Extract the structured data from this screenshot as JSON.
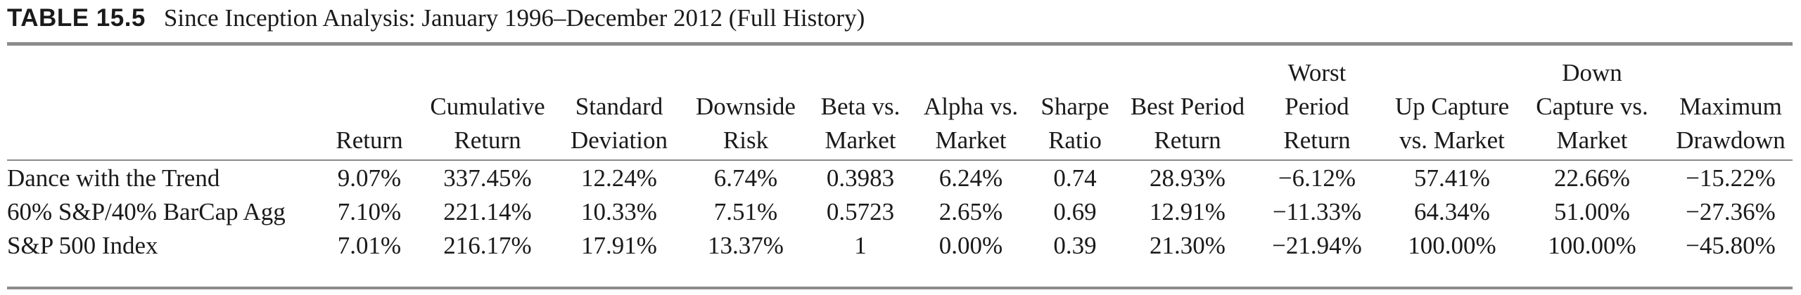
{
  "table": {
    "label": "TABLE 15.5",
    "title": "Since Inception Analysis: January 1996–December 2012 (Full History)",
    "columns": [
      {
        "lines": [
          "Return"
        ]
      },
      {
        "lines": [
          "Cumulative",
          "Return"
        ]
      },
      {
        "lines": [
          "Standard",
          "Deviation"
        ]
      },
      {
        "lines": [
          "Downside",
          "Risk"
        ]
      },
      {
        "lines": [
          "Beta vs.",
          "Market"
        ]
      },
      {
        "lines": [
          "Alpha vs.",
          "Market"
        ]
      },
      {
        "lines": [
          "Sharpe",
          "Ratio"
        ]
      },
      {
        "lines": [
          "Best Period",
          "Return"
        ]
      },
      {
        "lines": [
          "Worst",
          "Period",
          "Return"
        ]
      },
      {
        "lines": [
          "Up Capture",
          "vs. Market"
        ]
      },
      {
        "lines": [
          "Down",
          "Capture vs.",
          "Market"
        ]
      },
      {
        "lines": [
          "Maximum",
          "Drawdown"
        ]
      }
    ],
    "rows": [
      {
        "name": "Dance with the Trend",
        "values": [
          "9.07%",
          "337.45%",
          "12.24%",
          "6.74%",
          "0.3983",
          "6.24%",
          "0.74",
          "28.93%",
          "−6.12%",
          "57.41%",
          "22.66%",
          "−15.22%"
        ]
      },
      {
        "name": "60% S&P/40% BarCap Agg",
        "values": [
          "7.10%",
          "221.14%",
          "10.33%",
          "7.51%",
          "0.5723",
          "2.65%",
          "0.69",
          "12.91%",
          "−11.33%",
          "64.34%",
          "51.00%",
          "−27.36%"
        ]
      },
      {
        "name": "S&P 500 Index",
        "values": [
          "7.01%",
          "216.17%",
          "17.91%",
          "13.37%",
          "1",
          "0.00%",
          "0.39",
          "21.30%",
          "−21.94%",
          "100.00%",
          "100.00%",
          "−45.80%"
        ]
      }
    ]
  }
}
